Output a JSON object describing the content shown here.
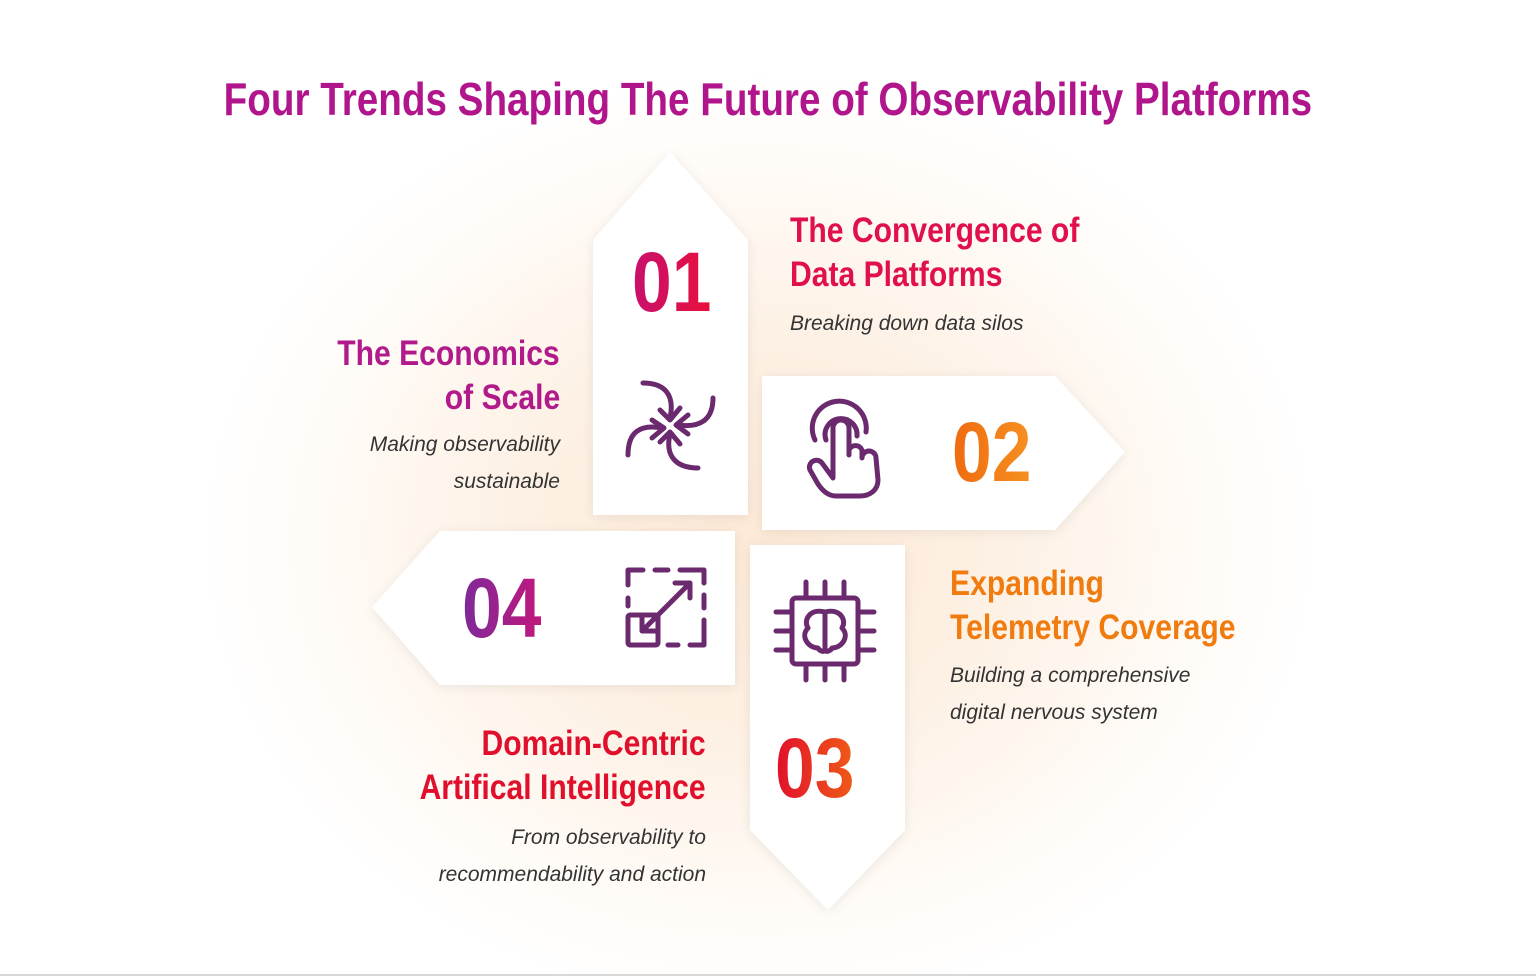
{
  "title": "Four Trends Shaping The Future of Observability Platforms",
  "colors": {
    "title": "#b0158c",
    "icon_stroke": "#6b2a6e",
    "arrow_fill": "#ffffff",
    "glow": "#fde9d6"
  },
  "trends": [
    {
      "number": "01",
      "heading_line1": "The Convergence of",
      "heading_line2": "Data Platforms",
      "subtitle": "Breaking down data silos",
      "icon": "converging-arrows-icon",
      "number_color": [
        "#c8106e",
        "#e8103c"
      ],
      "heading_color": "#e0104c"
    },
    {
      "number": "02",
      "heading_line1": "Expanding",
      "heading_line2": "Telemetry Coverage",
      "subtitle_line1": "Building a comprehensive",
      "subtitle_line2": "digital nervous system",
      "icon": "touch-hand-icon",
      "number_color": [
        "#f06a10",
        "#f59020"
      ],
      "heading_color": "#f07c10"
    },
    {
      "number": "03",
      "heading_line1": "Domain-Centric",
      "heading_line2": "Artifical Intelligence",
      "subtitle_line1": "From observability to",
      "subtitle_line2": "recommendability and action",
      "icon": "ai-chip-brain-icon",
      "number_color": [
        "#e0102c",
        "#f05a18"
      ],
      "heading_color": "#e0102c"
    },
    {
      "number": "04",
      "heading_line1": "The Economics",
      "heading_line2": "of Scale",
      "subtitle_line1": "Making observability",
      "subtitle_line2": "sustainable",
      "icon": "resize-expand-icon",
      "number_color": [
        "#7e2a9a",
        "#c0187c"
      ],
      "heading_color": "#b01a8a"
    }
  ]
}
